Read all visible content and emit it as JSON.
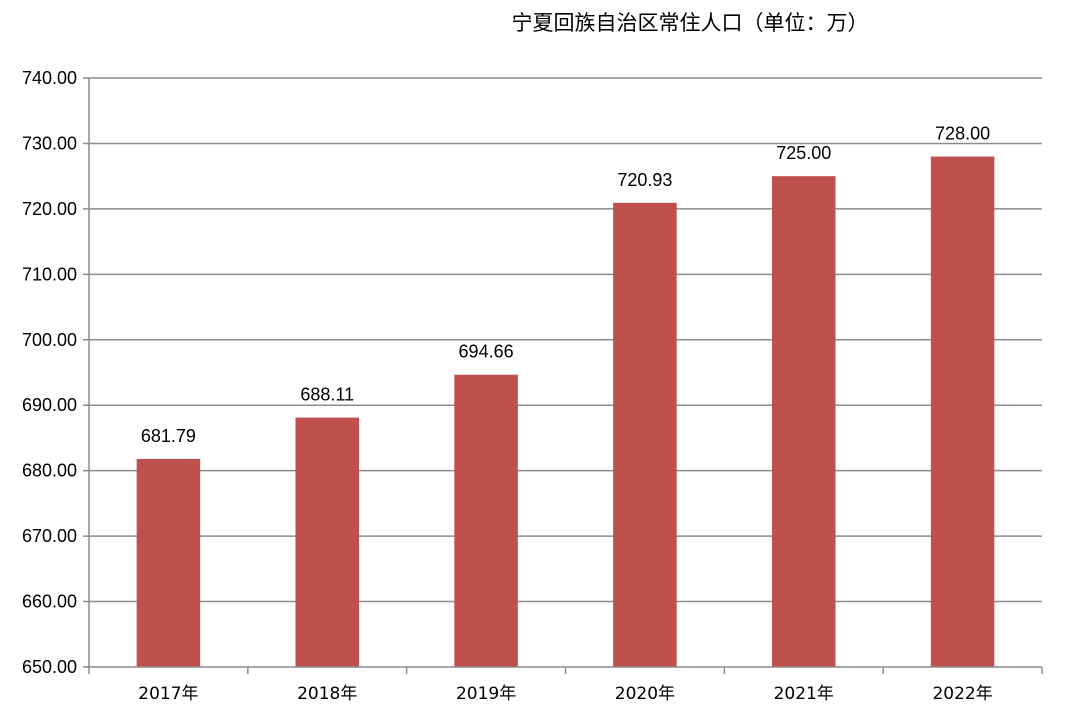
{
  "chart_data": {
    "type": "bar",
    "title": "宁夏回族自治区常住人口（单位：万）",
    "xlabel": "",
    "ylabel": "",
    "categories": [
      "2017年",
      "2018年",
      "2019年",
      "2020年",
      "2021年",
      "2022年"
    ],
    "series": [
      {
        "values": [
          681.79,
          688.11,
          694.66,
          720.93,
          725.0,
          728.0
        ],
        "data_labels": [
          "681.79",
          "688.11",
          "694.66",
          "720.93",
          "725.00",
          "728.00"
        ],
        "color": "#c0504d"
      }
    ],
    "ylim": [
      650,
      740
    ],
    "yticks": [
      650,
      660,
      670,
      680,
      690,
      700,
      710,
      720,
      730,
      740
    ],
    "ytick_labels": [
      "650.00",
      "660.00",
      "670.00",
      "680.00",
      "690.00",
      "700.00",
      "710.00",
      "720.00",
      "730.00",
      "740.00"
    ],
    "grid": true,
    "legend": "none"
  }
}
